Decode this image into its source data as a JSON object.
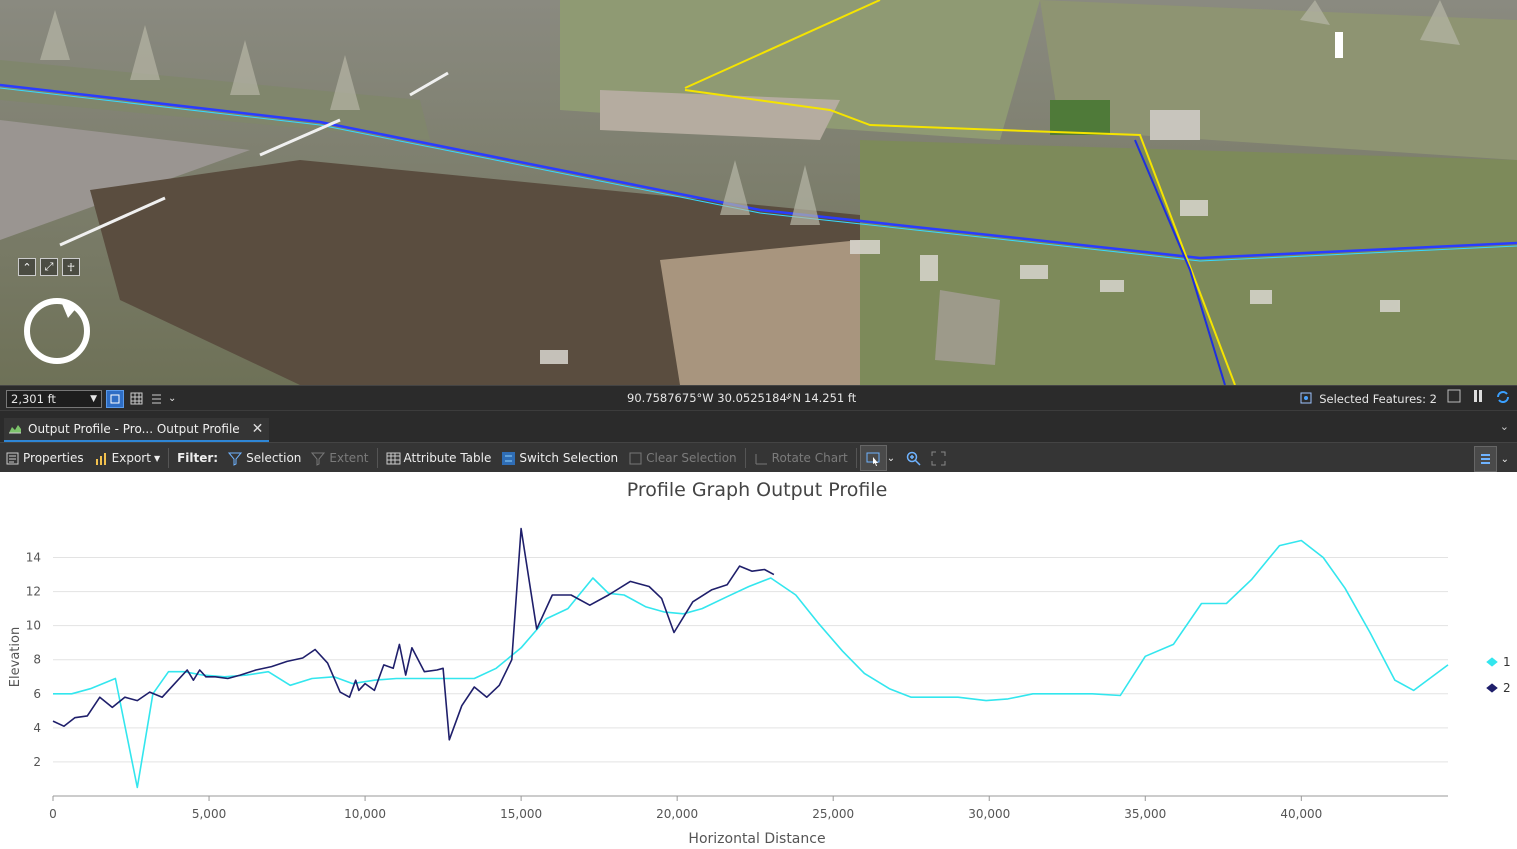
{
  "statusbar": {
    "scale": "2,301 ft",
    "coordinates": "90.7587675°W 30.0525184°N",
    "elevation": "14.251 ft",
    "selected_features": "Selected Features: 2"
  },
  "tab": {
    "title": "Output Profile - Pro... Output Profile"
  },
  "toolbar": {
    "properties": "Properties",
    "export": "Export",
    "filter_label": "Filter:",
    "selection": "Selection",
    "extent": "Extent",
    "attribute_table": "Attribute Table",
    "switch_selection": "Switch Selection",
    "clear_selection": "Clear Selection",
    "rotate_chart": "Rotate Chart"
  },
  "colors": {
    "series1": "#33e6ee",
    "series2": "#1f1f6b",
    "profile_line": "#2a3cff",
    "boundary_line": "#f5e400"
  },
  "chart_data": {
    "type": "line",
    "title": "Profile Graph Output Profile",
    "xlabel": "Horizontal Distance",
    "ylabel": "Elevation",
    "xlim": [
      0,
      44700
    ],
    "ylim": [
      0,
      15.5
    ],
    "xticks": [
      0,
      5000,
      10000,
      15000,
      20000,
      25000,
      30000,
      35000,
      40000
    ],
    "xtick_labels": [
      "0",
      "5,000",
      "10,000",
      "15,000",
      "20,000",
      "25,000",
      "30,000",
      "35,000",
      "40,000"
    ],
    "yticks": [
      2,
      4,
      6,
      8,
      10,
      12,
      14
    ],
    "ytick_labels": [
      "2",
      "4",
      "6",
      "8",
      "10",
      "12",
      "14"
    ],
    "grid": true,
    "legend": "right",
    "series": [
      {
        "name": "1",
        "x": [
          0,
          600,
          1200,
          2000,
          2700,
          3200,
          3700,
          4200,
          4800,
          5500,
          6200,
          6900,
          7600,
          8300,
          9000,
          9600,
          10300,
          11000,
          11800,
          12600,
          13500,
          14200,
          15000,
          15800,
          16500,
          17300,
          17800,
          18300,
          19000,
          19600,
          20200,
          20800,
          21600,
          22300,
          23000,
          23800,
          24500,
          25300,
          26000,
          26800,
          27500,
          28200,
          29000,
          29900,
          30600,
          31400,
          32300,
          33300,
          34200,
          35000,
          35900,
          36800,
          37600,
          38400,
          39300,
          40000,
          40700,
          41400,
          42200,
          43000,
          43600,
          44700
        ],
        "y": [
          6.0,
          6.0,
          6.3,
          6.9,
          0.5,
          6.0,
          7.3,
          7.3,
          7.1,
          7.0,
          7.1,
          7.3,
          6.5,
          6.9,
          7.0,
          6.6,
          6.8,
          6.9,
          6.9,
          6.9,
          6.9,
          7.5,
          8.7,
          10.4,
          11.0,
          12.8,
          11.9,
          11.8,
          11.1,
          10.8,
          10.7,
          11.0,
          11.7,
          12.3,
          12.8,
          11.8,
          10.2,
          8.5,
          7.2,
          6.3,
          5.8,
          5.8,
          5.8,
          5.6,
          5.7,
          6.0,
          6.0,
          6.0,
          5.9,
          8.2,
          8.9,
          11.3,
          11.3,
          12.7,
          14.7,
          15.0,
          14.0,
          12.2,
          9.6,
          6.8,
          6.2,
          7.7
        ]
      },
      {
        "name": "2",
        "x": [
          0,
          350,
          700,
          1100,
          1500,
          1900,
          2300,
          2700,
          3100,
          3500,
          3900,
          4300,
          4500,
          4700,
          4900,
          5200,
          5600,
          6000,
          6500,
          7000,
          7500,
          8000,
          8400,
          8800,
          9200,
          9500,
          9700,
          9800,
          10000,
          10300,
          10600,
          10900,
          11100,
          11300,
          11500,
          11900,
          12300,
          12500,
          12700,
          13100,
          13500,
          13900,
          14300,
          14700,
          15000,
          15500,
          16000,
          16600,
          17200,
          17800,
          18500,
          19100,
          19500,
          19900,
          20500,
          21100,
          21600,
          22000,
          22400,
          22800,
          23100
        ],
        "y": [
          4.4,
          4.1,
          4.6,
          4.7,
          5.8,
          5.2,
          5.8,
          5.6,
          6.1,
          5.8,
          6.6,
          7.4,
          6.8,
          7.4,
          7.0,
          7.0,
          6.9,
          7.1,
          7.4,
          7.6,
          7.9,
          8.1,
          8.6,
          7.8,
          6.1,
          5.8,
          6.8,
          6.2,
          6.6,
          6.2,
          7.7,
          7.5,
          8.9,
          7.1,
          8.7,
          7.3,
          7.4,
          7.5,
          3.3,
          5.3,
          6.4,
          5.8,
          6.5,
          8.0,
          15.7,
          9.8,
          11.8,
          11.8,
          11.2,
          11.8,
          12.6,
          12.3,
          11.6,
          9.6,
          11.4,
          12.1,
          12.4,
          13.5,
          13.2,
          13.3,
          13.0
        ]
      }
    ]
  }
}
